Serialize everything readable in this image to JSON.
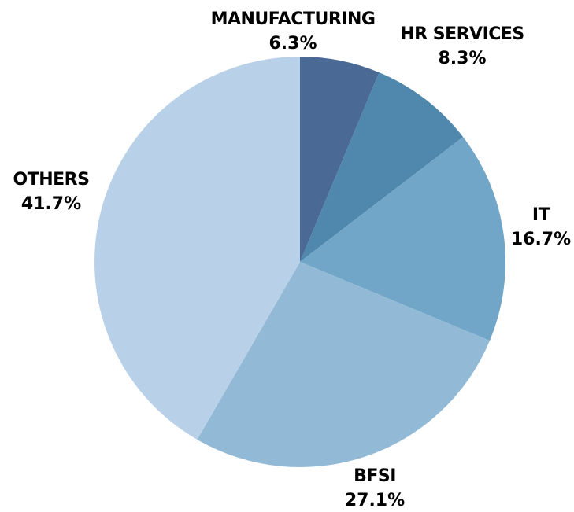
{
  "chart_data": {
    "type": "pie",
    "title": "",
    "slices": [
      {
        "label": "MANUFACTURING",
        "value": 6.3,
        "display": "6.3%",
        "color": "#4a6a95"
      },
      {
        "label": "HR SERVICES",
        "value": 8.3,
        "display": "8.3%",
        "color": "#4f87ad"
      },
      {
        "label": "IT",
        "value": 16.7,
        "display": "16.7%",
        "color": "#72a6c8"
      },
      {
        "label": "BFSI",
        "value": 27.1,
        "display": "27.1%",
        "color": "#92bad7"
      },
      {
        "label": "OTHERS",
        "value": 41.7,
        "display": "41.7%",
        "color": "#b9d1e8"
      }
    ],
    "start_angle": "12 o'clock",
    "direction": "clockwise",
    "legend": "none",
    "label_placement": "outside"
  }
}
